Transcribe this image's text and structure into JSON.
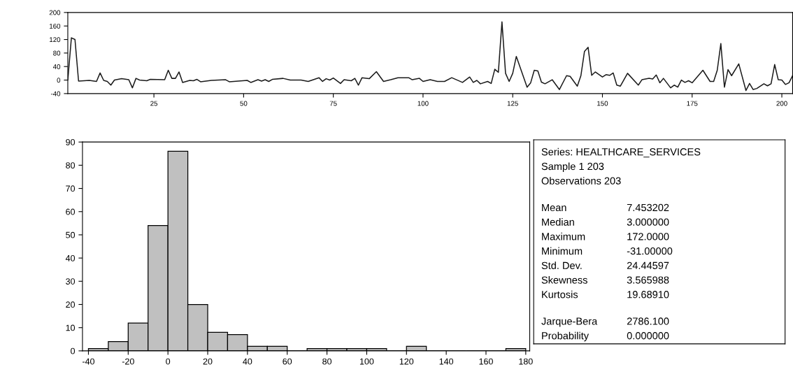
{
  "chart_data": [
    {
      "type": "line",
      "x": [
        1,
        2,
        3,
        4,
        7,
        9,
        10,
        11,
        12,
        13,
        14,
        16,
        18,
        19,
        20,
        21,
        23,
        24,
        28,
        29,
        30,
        31,
        32,
        33,
        35,
        36,
        37,
        38,
        41,
        45,
        46,
        51,
        52,
        54,
        55,
        56,
        57,
        58,
        61,
        63,
        66,
        68,
        71,
        72,
        73,
        74,
        75,
        77,
        78,
        80,
        81,
        82,
        83,
        85,
        87,
        89,
        91,
        93,
        96,
        97,
        99,
        100,
        102,
        104,
        106,
        108,
        111,
        113,
        114,
        115,
        116,
        118,
        119,
        120,
        121,
        122,
        123,
        124,
        125,
        126,
        129,
        130,
        131,
        132,
        133,
        134,
        136,
        138,
        140,
        141,
        143,
        144,
        145,
        146,
        147,
        148,
        150,
        151,
        152,
        153,
        154,
        155,
        157,
        160,
        161,
        163,
        164,
        165,
        166,
        167,
        169,
        170,
        171,
        172,
        173,
        174,
        175,
        178,
        180,
        181,
        182,
        183,
        184,
        185,
        186,
        188,
        190,
        191,
        192,
        193,
        195,
        196,
        197,
        198,
        199,
        200,
        201,
        202,
        203
      ],
      "series": [
        {
          "color": "#1a1a1a",
          "values": [
            0,
            125,
            120,
            -3,
            -1,
            -4,
            21,
            -1,
            -4,
            -15,
            0,
            4,
            1,
            -23,
            5,
            0,
            -2,
            2,
            1,
            29,
            5,
            5,
            24,
            -7,
            -1,
            -2,
            2,
            -5,
            -1,
            1,
            -5,
            -1,
            -7,
            1,
            -3,
            1,
            -4,
            2,
            5,
            0,
            0,
            -4,
            7,
            -4,
            4,
            0,
            6,
            -10,
            1,
            -2,
            5,
            -15,
            7,
            4,
            25,
            -4,
            1,
            7,
            7,
            1,
            5,
            -4,
            1,
            -4,
            -4,
            7,
            -7,
            9,
            -7,
            -1,
            -11,
            -4,
            -10,
            32,
            23,
            172,
            20,
            -4,
            20,
            70,
            -21,
            -8,
            29,
            27,
            -6,
            -11,
            1,
            -28,
            13,
            11,
            -18,
            13,
            85,
            97,
            14,
            24,
            9,
            16,
            14,
            21,
            -15,
            -18,
            20,
            -15,
            1,
            5,
            3,
            15,
            -8,
            5,
            -23,
            -15,
            -21,
            0,
            -7,
            -2,
            -8,
            29,
            -4,
            -4,
            29,
            108,
            -21,
            31,
            13,
            48,
            -31,
            -10,
            -28,
            -25,
            -11,
            -17,
            -11,
            46,
            1,
            0,
            -13,
            -8,
            13
          ]
        }
      ],
      "xlim": [
        1,
        203
      ],
      "xticks": [
        25,
        50,
        75,
        100,
        125,
        150,
        175,
        200
      ],
      "ylim": [
        -40,
        200
      ],
      "yticks": [
        -40,
        0,
        40,
        80,
        120,
        160,
        200
      ],
      "grid": false,
      "legend": false,
      "marker": "none",
      "line_style": "solid"
    },
    {
      "type": "histogram",
      "bins": [
        -40,
        -30,
        -20,
        -10,
        0,
        10,
        20,
        30,
        40,
        50,
        60,
        70,
        80,
        90,
        100,
        110,
        120,
        130,
        140,
        150,
        160,
        170,
        180
      ],
      "values": [
        1,
        4,
        12,
        54,
        86,
        20,
        8,
        7,
        2,
        2,
        0,
        1,
        1,
        1,
        1,
        0,
        2,
        0,
        0,
        0,
        0,
        1
      ],
      "color": "#c0c0c0",
      "xlim": [
        -43,
        182
      ],
      "xticks": [
        -40,
        -20,
        0,
        20,
        40,
        60,
        80,
        100,
        120,
        140,
        160,
        180
      ],
      "ylim": [
        0,
        90
      ],
      "yticks": [
        0,
        10,
        20,
        30,
        40,
        50,
        60,
        70,
        80,
        90
      ],
      "grid": false
    },
    {
      "type": "other",
      "annotations": [
        "Series: HEALTHCARE_SERVICES",
        "Sample 1 203",
        "Observations 203",
        "Mean\t7.453202",
        "Median\t3.000000",
        "Maximum\t172.0000",
        "Minimum\t-31.00000",
        "Std. Dev.\t24.44597",
        "Skewness\t3.565988",
        "Kurtosis\t19.68910",
        "Jarque-Bera\t2786.100",
        "Probability\t0.000000"
      ]
    }
  ]
}
